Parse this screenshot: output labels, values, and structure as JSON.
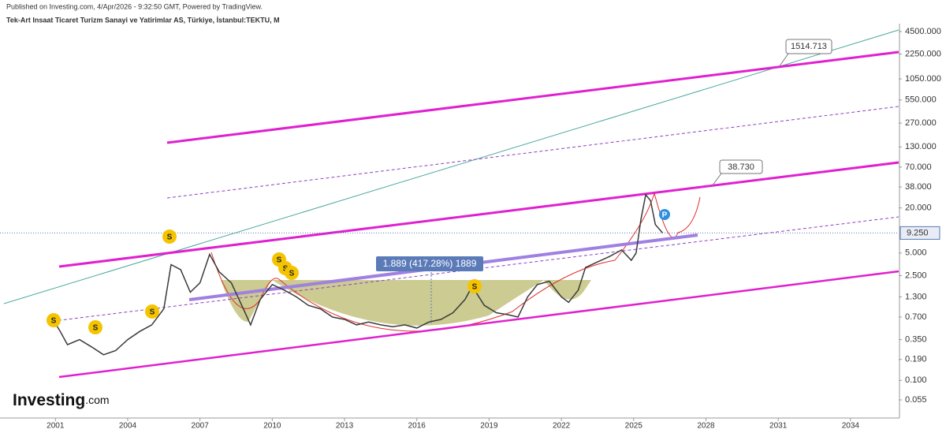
{
  "chart_data": {
    "type": "line",
    "header": "Published on Investing.com, 4/Apr/2026 - 9:32:50 GMT, Powered by TradingView.",
    "title": "Tek-Art Insaat Ticaret Turizm Sanayi ve Yatirimlar AS, Türkiye, İstanbul:TEKTU, M",
    "log_scale": true,
    "grid": false,
    "x": [
      2000.9,
      2001.2,
      2001.5,
      2002.0,
      2002.5,
      2003.0,
      2003.5,
      2004.0,
      2004.5,
      2005.0,
      2005.5,
      2005.8,
      2006.2,
      2006.6,
      2007.0,
      2007.4,
      2007.8,
      2008.3,
      2008.8,
      2009.1,
      2009.5,
      2010.0,
      2010.5,
      2011.0,
      2011.5,
      2012.0,
      2012.5,
      2013.0,
      2013.5,
      2014.0,
      2014.5,
      2015.0,
      2015.5,
      2016.0,
      2016.5,
      2017.0,
      2017.5,
      2018.0,
      2018.3,
      2018.8,
      2019.3,
      2019.8,
      2020.2,
      2020.6,
      2021.0,
      2021.5,
      2022.0,
      2022.3,
      2022.7,
      2023.0,
      2023.5,
      2024.0,
      2024.5,
      2024.9,
      2025.1,
      2025.3,
      2025.5,
      2025.7,
      2025.9,
      2026.2
    ],
    "series": [
      {
        "name": "TEKTU",
        "color": "#3a3a3a",
        "values": [
          0.65,
          0.45,
          0.3,
          0.35,
          0.28,
          0.22,
          0.25,
          0.35,
          0.45,
          0.55,
          0.9,
          3.5,
          3.0,
          1.5,
          2.0,
          4.8,
          2.8,
          2.0,
          0.9,
          0.55,
          1.2,
          1.9,
          1.6,
          1.3,
          1.0,
          0.9,
          0.7,
          0.65,
          0.55,
          0.6,
          0.55,
          0.52,
          0.55,
          0.5,
          0.6,
          0.65,
          0.8,
          1.2,
          1.8,
          1.0,
          0.8,
          0.75,
          0.7,
          1.3,
          1.9,
          2.1,
          1.3,
          1.1,
          1.6,
          3.2,
          3.8,
          4.5,
          5.5,
          4.0,
          5.0,
          14,
          30,
          25,
          12,
          9.25
        ]
      }
    ],
    "xlim": [
      1998.7,
      2036
    ],
    "xticks": [
      2001,
      2004,
      2007,
      2010,
      2013,
      2016,
      2019,
      2022,
      2025,
      2028,
      2031,
      2034
    ],
    "ylim": [
      0.0315,
      5730
    ],
    "yticks": [
      {
        "value": 4500,
        "label": "4500.000"
      },
      {
        "value": 2250,
        "label": "2250.000"
      },
      {
        "value": 1050,
        "label": "1050.000"
      },
      {
        "value": 550,
        "label": "550.000"
      },
      {
        "value": 270,
        "label": "270.000"
      },
      {
        "value": 130,
        "label": "130.000"
      },
      {
        "value": 70,
        "label": "70.000"
      },
      {
        "value": 38,
        "label": "38.000"
      },
      {
        "value": 20,
        "label": "20.000"
      },
      {
        "value": 5,
        "label": "5.000"
      },
      {
        "value": 2.5,
        "label": "2.500"
      },
      {
        "value": 1.3,
        "label": "1.300"
      },
      {
        "value": 0.7,
        "label": "0.700"
      },
      {
        "value": 0.35,
        "label": "0.350"
      },
      {
        "value": 0.19,
        "label": "0.190"
      },
      {
        "value": 0.1,
        "label": "0.100"
      },
      {
        "value": 0.055,
        "label": "0.055"
      }
    ],
    "last_price": {
      "value": 9.25,
      "label": "9.250"
    },
    "annotations": [
      "1514.713",
      "38.730",
      "1.889 (417.28%) 1889"
    ],
    "signals": [
      "S",
      "P"
    ],
    "logo": [
      "Investing",
      ".com"
    ]
  }
}
